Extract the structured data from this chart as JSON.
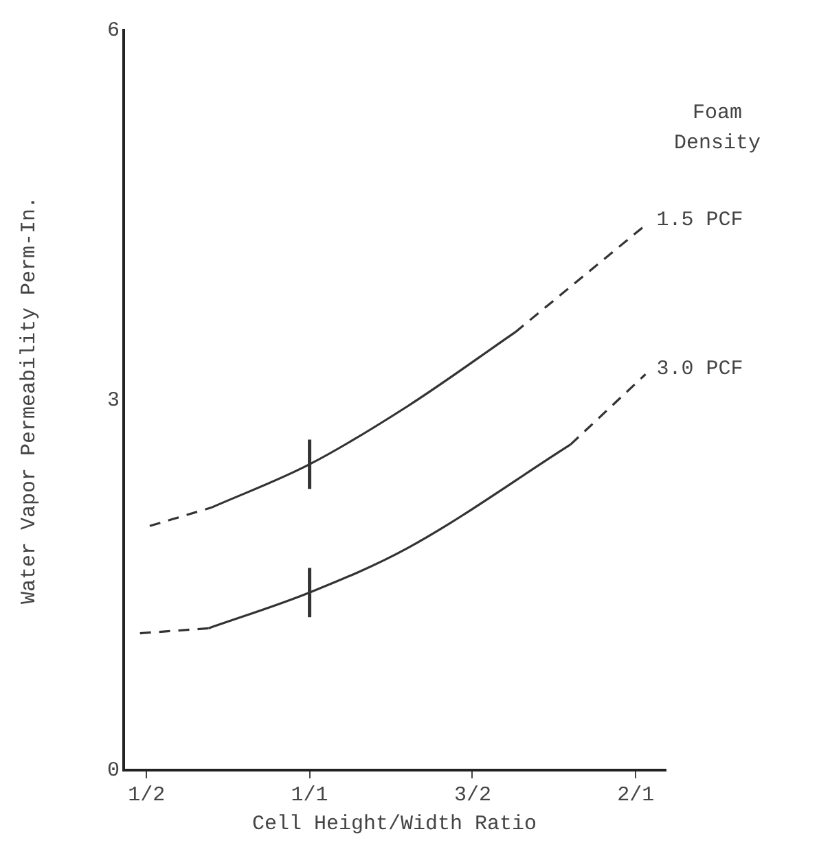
{
  "chart_data": {
    "type": "line",
    "xlabel": "Cell Height/Width Ratio",
    "ylabel": "Water Vapor Permeability Perm-In.",
    "legend_title": "Foam Density",
    "xlim": [
      0.43,
      2.09
    ],
    "xticks": [
      {
        "value": 0.5,
        "label": "1/2"
      },
      {
        "value": 1,
        "label": "1/1"
      },
      {
        "value": 1.5,
        "label": "3/2"
      },
      {
        "value": 2,
        "label": "2/1"
      }
    ],
    "ylim": [
      0,
      6
    ],
    "yticks": [
      0,
      3,
      6
    ],
    "grid": false,
    "legend": false,
    "marker": "none",
    "series": [
      {
        "color": "#333333",
        "line_style": "dashed",
        "x": [
          0.51,
          0.7
        ],
        "values": [
          1.98,
          2.13
        ]
      },
      {
        "color": "#333333",
        "line_style": "solid",
        "x": [
          0.7,
          1,
          1.3,
          1.63
        ],
        "values": [
          2.13,
          2.48,
          2.95,
          3.55
        ],
        "errors": [
          null,
          0.2,
          null,
          null
        ]
      },
      {
        "name": "1.5 PCF",
        "color": "#333333",
        "line_style": "dashed",
        "x": [
          1.63,
          2.03
        ],
        "values": [
          3.55,
          4.42
        ]
      },
      {
        "color": "#333333",
        "line_style": "dashed",
        "x": [
          0.48,
          0.69
        ],
        "values": [
          1.11,
          1.15
        ]
      },
      {
        "color": "#333333",
        "line_style": "solid",
        "x": [
          0.69,
          1,
          1.3,
          1.8
        ],
        "values": [
          1.15,
          1.44,
          1.8,
          2.64
        ],
        "errors": [
          null,
          0.2,
          null,
          null
        ]
      },
      {
        "name": "3.0 PCF",
        "color": "#333333",
        "line_style": "dashed",
        "x": [
          1.8,
          2.03
        ],
        "values": [
          2.64,
          3.21
        ]
      }
    ]
  }
}
